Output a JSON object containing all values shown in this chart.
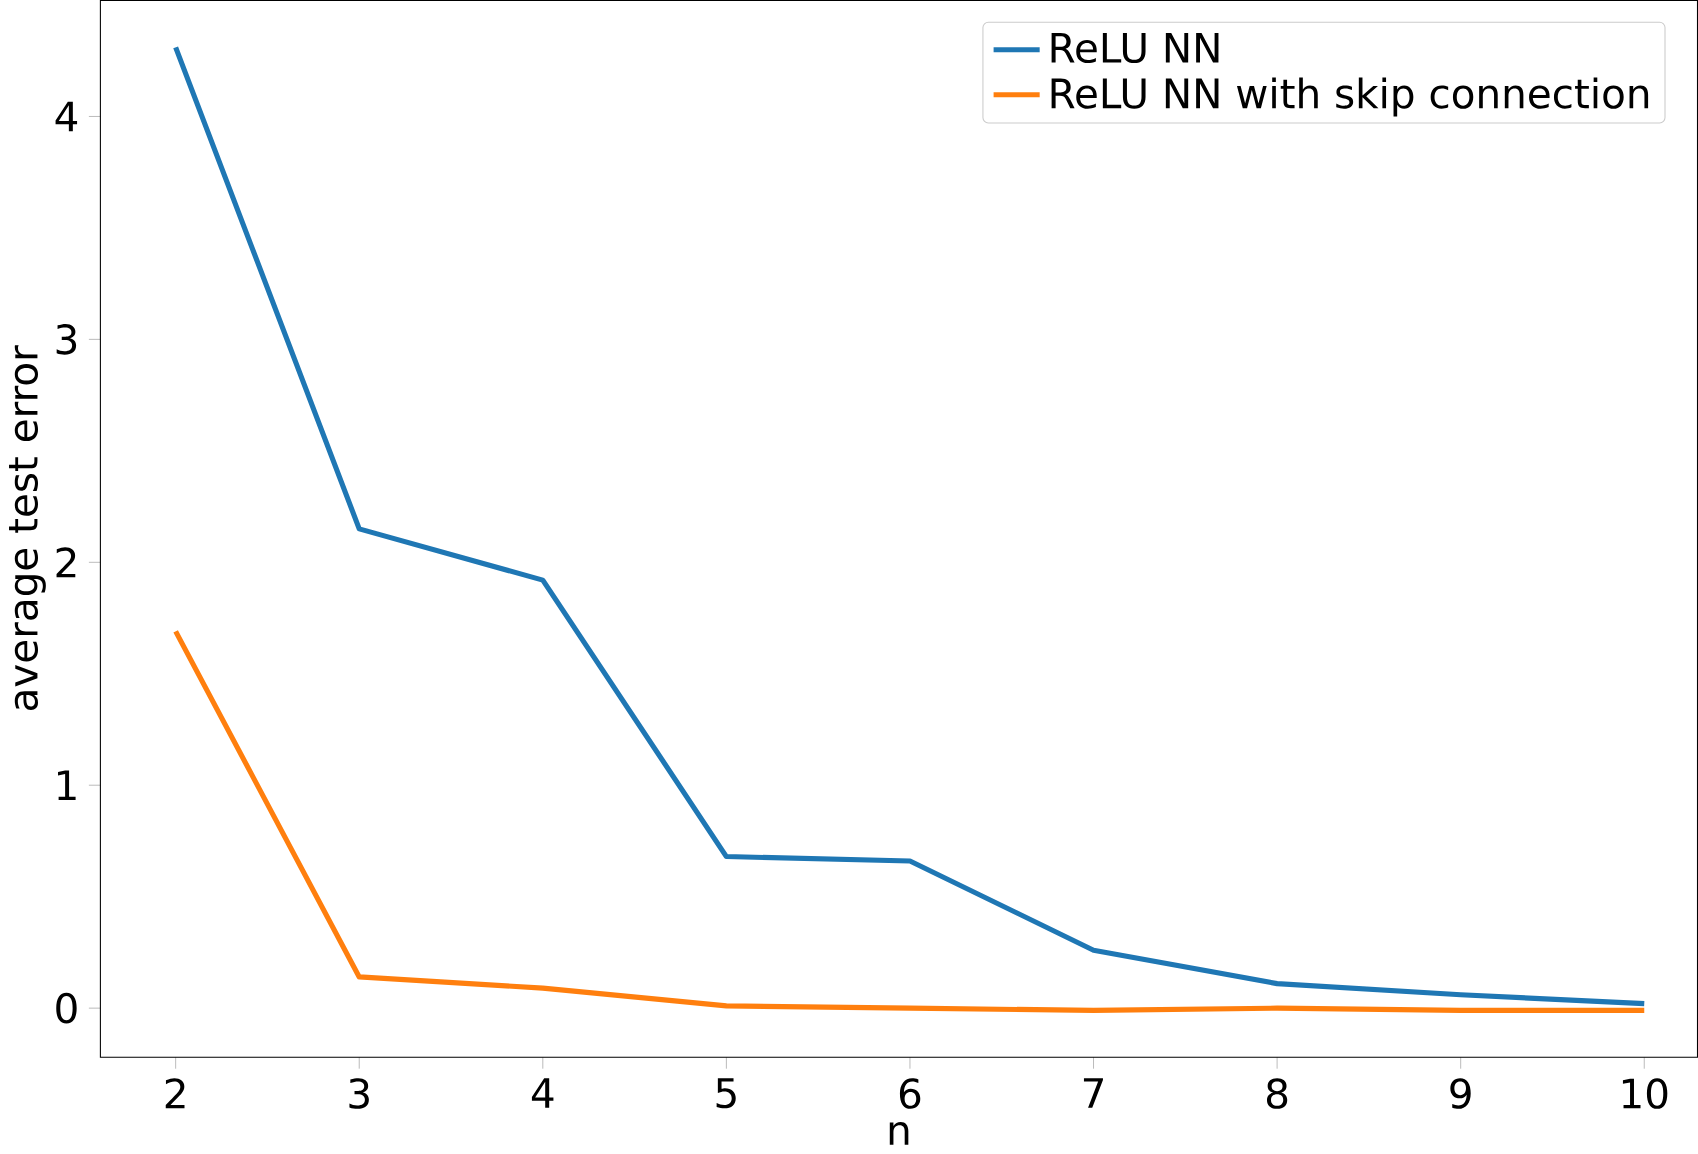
{
  "chart_data": {
    "type": "line",
    "xlabel": "n",
    "ylabel": "average test error",
    "x": [
      2,
      3,
      4,
      5,
      6,
      7,
      8,
      9,
      10
    ],
    "series": [
      {
        "name": "ReLU NN",
        "color": "#1f77b4",
        "values": [
          4.31,
          2.15,
          1.92,
          0.68,
          0.66,
          0.26,
          0.11,
          0.06,
          0.02
        ]
      },
      {
        "name": "ReLU NN with skip connection",
        "color": "#ff7f0e",
        "values": [
          1.69,
          0.14,
          0.09,
          0.01,
          0.0,
          -0.01,
          0.0,
          -0.01,
          -0.01
        ]
      }
    ],
    "xlim": [
      1.59,
      10.29
    ],
    "ylim": [
      -0.22,
      4.52
    ],
    "xticks": [
      2,
      3,
      4,
      5,
      6,
      7,
      8,
      9,
      10
    ],
    "yticks": [
      0,
      1,
      2,
      3,
      4
    ],
    "legend": "top right",
    "grid": false,
    "marker": "none",
    "line_style": "solid"
  }
}
